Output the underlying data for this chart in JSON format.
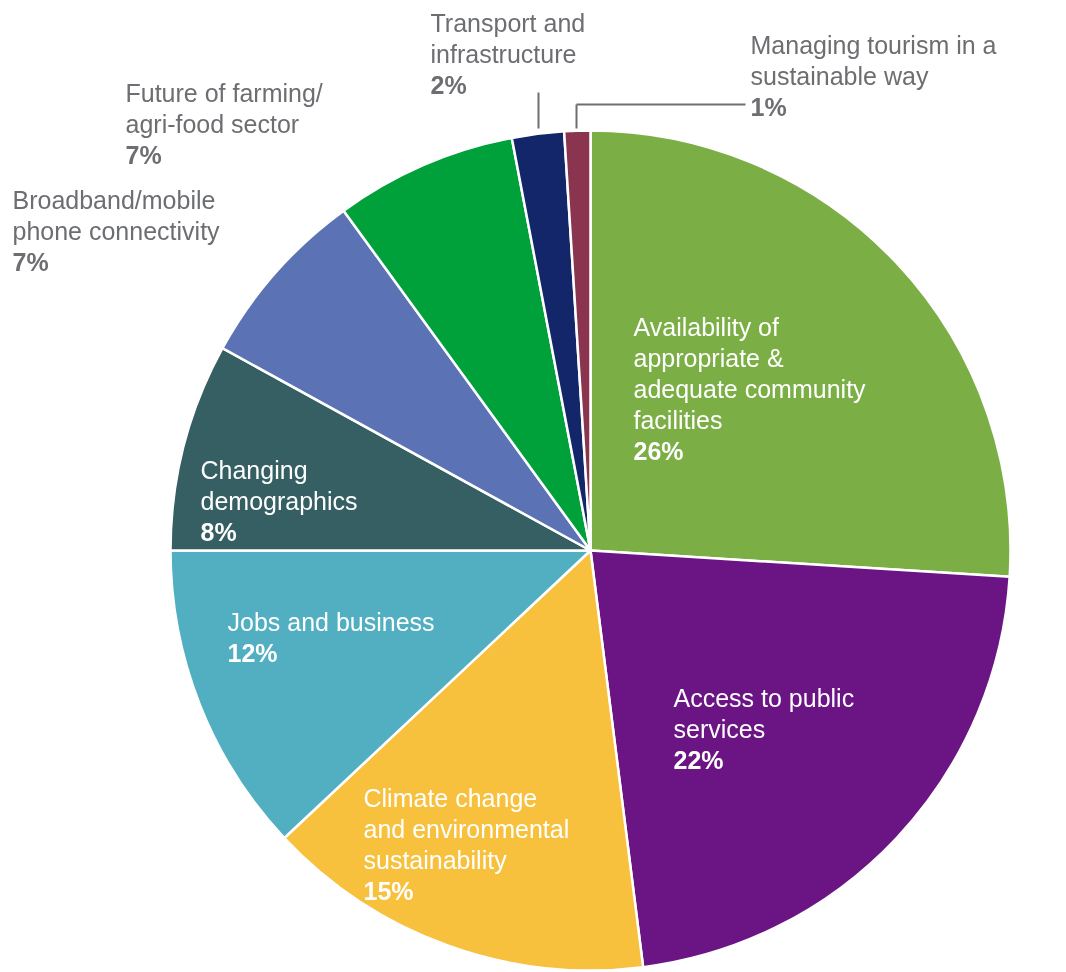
{
  "chart_data": {
    "type": "pie",
    "categories": [
      "Availability of appropriate & adequate community facilities",
      "Access to public services",
      "Climate change and environmental sustainability",
      "Jobs and business",
      "Changing demographics",
      "Broadband/mobile phone connectivity",
      "Future of farming/ agri-food sector",
      "Transport and infrastructure",
      "Managing tourism in a sustainable way"
    ],
    "values": [
      26,
      22,
      15,
      12,
      8,
      7,
      7,
      2,
      1
    ],
    "colors": [
      "#7cae46",
      "#6b1483",
      "#f7c03d",
      "#52afc1",
      "#355f63",
      "#5b72b5",
      "#00a03a",
      "#13266a",
      "#8b3450"
    ],
    "value_labels": [
      "26%",
      "22%",
      "15%",
      "12%",
      "8%",
      "7%",
      "7%",
      "2%",
      "1%"
    ]
  }
}
